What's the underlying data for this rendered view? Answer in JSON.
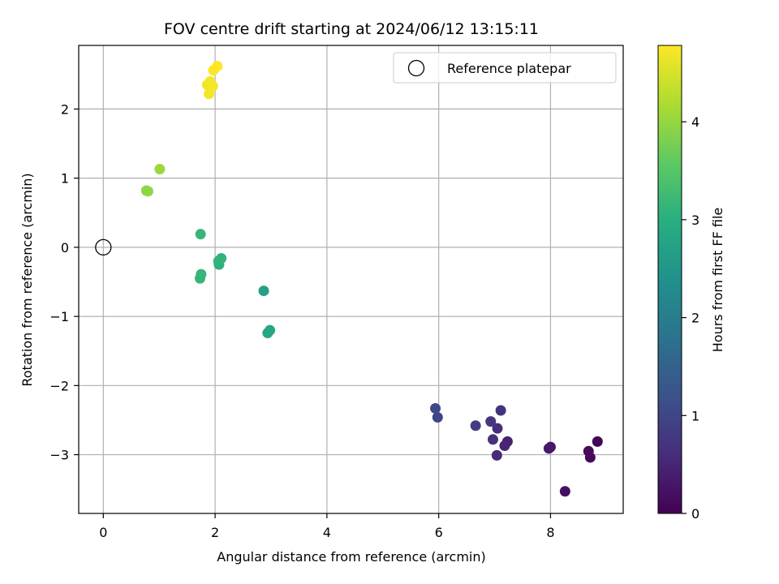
{
  "chart_data": {
    "type": "scatter",
    "title": "FOV centre drift starting at 2024/06/12 13:15:11",
    "xlabel": "Angular distance from reference (arcmin)",
    "ylabel": "Rotation from reference (arcmin)",
    "xlim": [
      -0.44,
      9.3
    ],
    "ylim": [
      -3.85,
      2.92
    ],
    "xticks": [
      0,
      2,
      4,
      6,
      8
    ],
    "yticks": [
      -3,
      -2,
      -1,
      0,
      1,
      2
    ],
    "grid": true,
    "legend": {
      "location": "upper right",
      "entries": [
        "Reference platepar"
      ]
    },
    "reference_point": {
      "name": "Reference platepar",
      "x": 0,
      "y": 0
    },
    "colorbar": {
      "label": "Hours from first FF file",
      "colormap": "viridis",
      "range": [
        0,
        4.78
      ],
      "ticks": [
        0,
        1,
        2,
        3,
        4
      ]
    },
    "series": [
      {
        "color_variable": "hours",
        "points": [
          {
            "x": 8.84,
            "y": -2.81,
            "hours": 0.05
          },
          {
            "x": 8.71,
            "y": -3.04,
            "hours": 0.1
          },
          {
            "x": 8.68,
            "y": -2.95,
            "hours": 0.15
          },
          {
            "x": 8.26,
            "y": -3.53,
            "hours": 0.2
          },
          {
            "x": 8.0,
            "y": -2.89,
            "hours": 0.28
          },
          {
            "x": 7.97,
            "y": -2.91,
            "hours": 0.33
          },
          {
            "x": 7.23,
            "y": -2.81,
            "hours": 0.45
          },
          {
            "x": 7.18,
            "y": -2.87,
            "hours": 0.5
          },
          {
            "x": 7.04,
            "y": -3.01,
            "hours": 0.55
          },
          {
            "x": 7.05,
            "y": -2.62,
            "hours": 0.6
          },
          {
            "x": 6.97,
            "y": -2.78,
            "hours": 0.65
          },
          {
            "x": 7.11,
            "y": -2.36,
            "hours": 0.7
          },
          {
            "x": 6.93,
            "y": -2.52,
            "hours": 0.75
          },
          {
            "x": 6.66,
            "y": -2.58,
            "hours": 0.85
          },
          {
            "x": 5.98,
            "y": -2.46,
            "hours": 1.0
          },
          {
            "x": 5.94,
            "y": -2.33,
            "hours": 1.05
          },
          {
            "x": 2.87,
            "y": -0.63,
            "hours": 2.7
          },
          {
            "x": 2.94,
            "y": -1.24,
            "hours": 2.8
          },
          {
            "x": 2.98,
            "y": -1.2,
            "hours": 2.85
          },
          {
            "x": 2.07,
            "y": -0.25,
            "hours": 3.05
          },
          {
            "x": 2.11,
            "y": -0.16,
            "hours": 3.1
          },
          {
            "x": 2.06,
            "y": -0.2,
            "hours": 3.1
          },
          {
            "x": 1.74,
            "y": 0.19,
            "hours": 3.15
          },
          {
            "x": 1.75,
            "y": -0.39,
            "hours": 3.15
          },
          {
            "x": 1.73,
            "y": -0.45,
            "hours": 3.15
          },
          {
            "x": 1.01,
            "y": 1.13,
            "hours": 4.05
          },
          {
            "x": 0.77,
            "y": 0.82,
            "hours": 3.95
          },
          {
            "x": 0.8,
            "y": 0.81,
            "hours": 3.95
          },
          {
            "x": 1.86,
            "y": 2.35,
            "hours": 4.68
          },
          {
            "x": 1.89,
            "y": 2.22,
            "hours": 4.7
          },
          {
            "x": 1.96,
            "y": 2.33,
            "hours": 4.72
          },
          {
            "x": 1.91,
            "y": 2.4,
            "hours": 4.72
          },
          {
            "x": 1.97,
            "y": 2.56,
            "hours": 4.75
          },
          {
            "x": 2.04,
            "y": 2.62,
            "hours": 4.78
          }
        ]
      }
    ]
  }
}
